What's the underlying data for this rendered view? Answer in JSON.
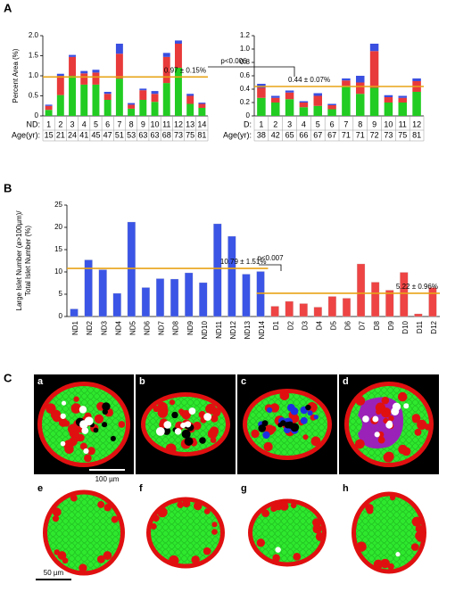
{
  "panels": {
    "a": "A",
    "b": "B",
    "c": "C"
  },
  "chart_data": [
    {
      "type": "stacked_bar",
      "ylabel": "Percent Area (%)",
      "row_labels": [
        "ND:",
        "Age(yr):"
      ],
      "categories": [
        "1",
        "2",
        "3",
        "4",
        "5",
        "6",
        "7",
        "8",
        "9",
        "10",
        "11",
        "12",
        "13",
        "14"
      ],
      "ages": [
        15,
        21,
        24,
        41,
        45,
        47,
        51,
        53,
        63,
        63,
        68,
        73,
        75,
        81
      ],
      "series": [
        {
          "color": "#22cc22",
          "values": [
            0.15,
            0.52,
            1.0,
            0.78,
            0.78,
            0.4,
            0.93,
            0.18,
            0.4,
            0.35,
            0.82,
            1.2,
            0.3,
            0.2
          ]
        },
        {
          "color": "#e83a3a",
          "values": [
            0.1,
            0.48,
            0.47,
            0.28,
            0.3,
            0.15,
            0.62,
            0.1,
            0.24,
            0.2,
            0.65,
            0.6,
            0.2,
            0.1
          ]
        },
        {
          "color": "#3a4fe0",
          "values": [
            0.03,
            0.05,
            0.05,
            0.06,
            0.07,
            0.05,
            0.25,
            0.04,
            0.04,
            0.07,
            0.1,
            0.08,
            0.05,
            0.03
          ]
        }
      ],
      "ylim": [
        0,
        2
      ],
      "yticks": [
        0,
        0.5,
        {
          "value": 1,
          "label": "1.0"
        },
        1.5,
        {
          "value": 2,
          "label": "2.0"
        }
      ],
      "mean_lines": [
        {
          "value": 0.97,
          "label": "0.97 ± 0.15%",
          "color": "#e8a317"
        }
      ],
      "annotation": "p<0.006"
    },
    {
      "type": "stacked_bar",
      "row_labels": [
        "D:",
        "Age(yr):"
      ],
      "categories": [
        "1",
        "2",
        "3",
        "4",
        "5",
        "6",
        "7",
        "8",
        "9",
        "10",
        "11",
        "12"
      ],
      "ages": [
        38,
        42,
        65,
        66,
        67,
        67,
        71,
        71,
        72,
        73,
        75,
        81
      ],
      "series": [
        {
          "color": "#22cc22",
          "values": [
            0.27,
            0.2,
            0.25,
            0.13,
            0.15,
            0.1,
            0.45,
            0.33,
            0.42,
            0.2,
            0.2,
            0.36
          ]
        },
        {
          "color": "#e83a3a",
          "values": [
            0.15,
            0.07,
            0.1,
            0.07,
            0.15,
            0.06,
            0.08,
            0.17,
            0.55,
            0.08,
            0.07,
            0.16
          ]
        },
        {
          "color": "#3a4fe0",
          "values": [
            0.06,
            0.03,
            0.03,
            0.02,
            0.04,
            0.02,
            0.03,
            0.1,
            0.11,
            0.03,
            0.03,
            0.04
          ]
        }
      ],
      "ylim": [
        0,
        1.2
      ],
      "yticks": [
        0,
        0.2,
        0.4,
        0.6,
        0.8,
        {
          "value": 1,
          "label": "1.0"
        },
        1.2
      ],
      "mean_lines": [
        {
          "value": 0.44,
          "label": "0.44 ± 0.07%",
          "color": "#e8a317"
        }
      ]
    },
    {
      "type": "bar",
      "ylabel": [
        "Large Islet Number (ø>100µm)/",
        "Total Islet Number (%)"
      ],
      "categories": [
        "ND1",
        "ND2",
        "ND3",
        "ND4",
        "ND5",
        "ND6",
        "ND7",
        "ND8",
        "ND9",
        "ND10",
        "ND11",
        "ND12",
        "ND13",
        "ND14",
        "D1",
        "D2",
        "D3",
        "D4",
        "D5",
        "D6",
        "D7",
        "D8",
        "D9",
        "D10",
        "D11",
        "D12"
      ],
      "series": [
        {
          "color": "#3b55e6",
          "values": [
            1.7,
            12.7,
            10.5,
            5.2,
            21.2,
            6.5,
            8.5,
            8.4,
            9.8,
            7.6,
            20.8,
            18,
            9.5,
            10.1,
            null,
            null,
            null,
            null,
            null,
            null,
            null,
            null,
            null,
            null,
            null,
            null
          ]
        },
        {
          "color": "#ee4444",
          "values": [
            null,
            null,
            null,
            null,
            null,
            null,
            null,
            null,
            null,
            null,
            null,
            null,
            null,
            null,
            2.3,
            3.4,
            2.9,
            2.1,
            4.5,
            4.1,
            11.8,
            7.7,
            5.9,
            9.9,
            0.6,
            6.5
          ]
        }
      ],
      "ylim": [
        0,
        25
      ],
      "yticks": [
        0,
        5,
        10,
        15,
        20,
        25
      ],
      "mean_lines": [
        {
          "value": 10.79,
          "label": "10.79 ± 1.51%",
          "color": "#e8a317"
        },
        {
          "value": 5.22,
          "label": "5.22 ± 0.96%",
          "color": "#e8a317"
        }
      ],
      "annotation": "p<0.007"
    }
  ],
  "panel_c": {
    "labels": [
      "a",
      "b",
      "c",
      "d",
      "e",
      "f",
      "g",
      "h"
    ],
    "scale_bars": [
      "100 µm",
      "50 µm"
    ]
  }
}
